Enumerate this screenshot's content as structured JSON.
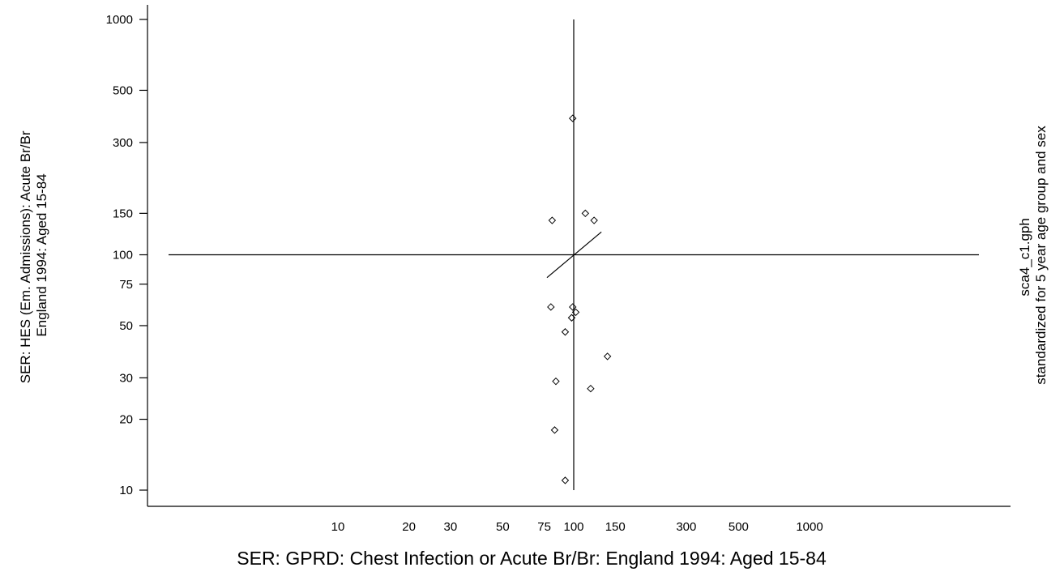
{
  "chart_data": {
    "type": "scatter",
    "xlabel": "SER: GPRD: Chest Infection or Acute Br/Br: England 1994: Aged 15-84",
    "ylabel_lines": [
      "SER: HES (Em. Admissions): Acute Br/Br",
      "England 1994: Aged 15-84"
    ],
    "right_note_lines": [
      "sca4_c1.gph",
      "standardized for 5 year age group and sex"
    ],
    "x_scale": "log",
    "y_scale": "log",
    "xlim": [
      1,
      10000
    ],
    "ylim": [
      10,
      1000
    ],
    "x_ticks": [
      10,
      20,
      30,
      50,
      75,
      100,
      150,
      300,
      500,
      1000
    ],
    "x_tick_labels": [
      "10",
      "20",
      "30",
      "50",
      "75",
      "100",
      "150",
      "300",
      "500",
      "1000"
    ],
    "y_ticks": [
      10,
      20,
      30,
      50,
      75,
      100,
      150,
      300,
      500,
      1000
    ],
    "y_tick_labels": [
      "10",
      "20",
      "30",
      "50",
      "75",
      "100",
      "150",
      "300",
      "500",
      "1000"
    ],
    "reference_lines": {
      "x": 100,
      "y": 100
    },
    "trend_line": [
      [
        77,
        80
      ],
      [
        131,
        125
      ]
    ],
    "marker": "hollow-diamond",
    "points": [
      {
        "x": 99,
        "y": 380
      },
      {
        "x": 112,
        "y": 150
      },
      {
        "x": 122,
        "y": 140
      },
      {
        "x": 81,
        "y": 140
      },
      {
        "x": 80,
        "y": 60
      },
      {
        "x": 99,
        "y": 60
      },
      {
        "x": 102,
        "y": 57
      },
      {
        "x": 98,
        "y": 54
      },
      {
        "x": 92,
        "y": 47
      },
      {
        "x": 139,
        "y": 37
      },
      {
        "x": 84,
        "y": 29
      },
      {
        "x": 118,
        "y": 27
      },
      {
        "x": 83,
        "y": 18
      },
      {
        "x": 92,
        "y": 11
      }
    ],
    "grid": false,
    "legend": "none"
  }
}
